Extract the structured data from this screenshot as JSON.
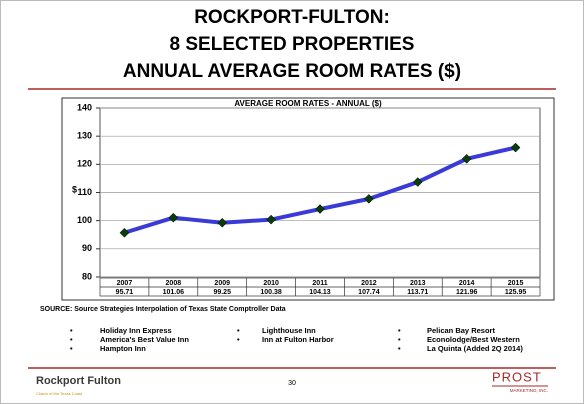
{
  "slide": {
    "title_lines": [
      "ROCKPORT-FULTON:",
      "8 SELECTED PROPERTIES",
      "ANNUAL AVERAGE ROOM RATES ($)"
    ],
    "source": "SOURCE: Source Strategies Interpolation of Texas State Comptroller Data",
    "properties": [
      [
        "Holiday Inn Express",
        "America's Best Value Inn",
        "Hampton Inn"
      ],
      [
        "Lighthouse Inn",
        "Inn at Fulton Harbor"
      ],
      [
        "Pelican Bay Resort",
        "Econolodge/Best Western",
        "La Quinta (Added 2Q 2014)"
      ]
    ],
    "logo_left": "Rockport Fulton",
    "logo_left_tagline": "Charm of the Texas Coast",
    "page_number": "30",
    "logo_right": "PROST",
    "logo_right_sub": "MARKETING, INC."
  },
  "chart_data": {
    "type": "line",
    "title": "AVERAGE ROOM RATES - ANNUAL ($)",
    "y_label": "$",
    "categories": [
      "2007",
      "2008",
      "2009",
      "2010",
      "2011",
      "2012",
      "2013",
      "2014",
      "2015"
    ],
    "values": [
      95.71,
      101.06,
      99.25,
      100.38,
      104.13,
      107.74,
      113.71,
      121.96,
      125.95
    ],
    "color": "#3a3ad8",
    "marker_color": "#0b3d0b",
    "ylim": [
      80,
      140
    ],
    "yticks": [
      80,
      90,
      100,
      110,
      120,
      130,
      140
    ],
    "grid": true
  }
}
